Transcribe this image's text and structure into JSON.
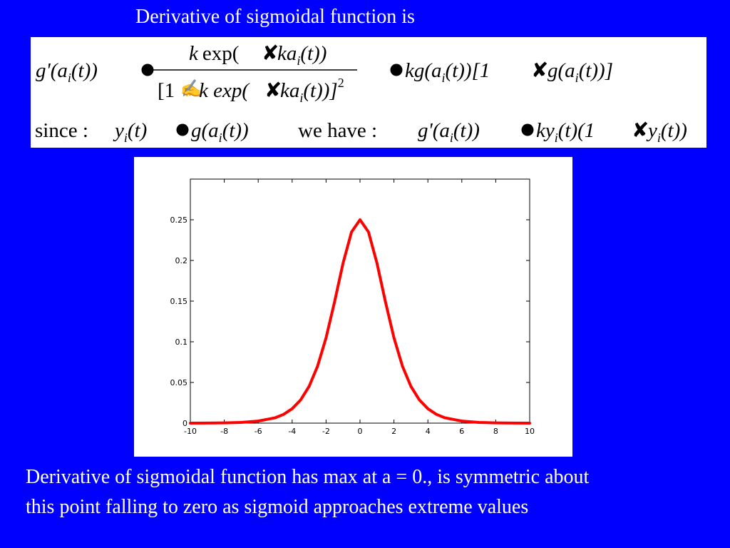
{
  "slide": {
    "title": "Derivative of sigmoidal function is",
    "caption_lines": [
      "Derivative of sigmoidal function has max at a = 0., is symmetric about",
      "this point falling to zero as sigmoid approaches extreme values"
    ],
    "background_color": "#0000ff",
    "text_color": "#ffffff"
  },
  "formula": {
    "line1": {
      "lhs": "g'(a",
      "lhs_sub": "i",
      "lhs_end": "(t))",
      "num_k": "k",
      "num_exp": "exp(",
      "num_arg": "ka",
      "num_sub": "i",
      "num_end": "(t))",
      "den_start": "[1",
      "den_mid": "k exp(",
      "den_arg": "ka",
      "den_sub": "i",
      "den_end": "(t))]",
      "den_pow": "2",
      "rhs_k": "kg(a",
      "rhs_sub": "i",
      "rhs_mid": "(t))[1",
      "rhs_g": "g(a",
      "rhs_sub2": "i",
      "rhs_end": "(t))]"
    },
    "line2": {
      "since": "since :",
      "y": "y",
      "y_sub": "i",
      "y_end": "(t)",
      "g": "g(a",
      "g_sub": "i",
      "g_end": "(t))",
      "we_have": "we have :",
      "gp": "g'(a",
      "gp_sub": "i",
      "gp_end": "(t))",
      "k_y": "ky",
      "k_y_sub": "i",
      "k_y_mid": "(t)(1",
      "y2": "y",
      "y2_sub": "i",
      "y2_end": "(t))"
    }
  },
  "chart_data": {
    "type": "line",
    "title": "",
    "xlabel": "",
    "ylabel": "",
    "xlim": [
      -10,
      10
    ],
    "ylim": [
      0,
      0.3
    ],
    "xticks": [
      -10,
      -8,
      -6,
      -4,
      -2,
      0,
      2,
      4,
      6,
      8,
      10
    ],
    "yticks": [
      0,
      0.05,
      0.1,
      0.15,
      0.2,
      0.25
    ],
    "ytick_labels": [
      "0",
      "0.05",
      "0.1",
      "0.15",
      "0.2",
      "0.25"
    ],
    "grid": false,
    "series": [
      {
        "color": "#ff0000",
        "x": [
          -10,
          -9,
          -8,
          -7,
          -6,
          -5,
          -4.5,
          -4,
          -3.5,
          -3,
          -2.5,
          -2,
          -1.5,
          -1,
          -0.5,
          0,
          0.5,
          1,
          1.5,
          2,
          2.5,
          3,
          3.5,
          4,
          4.5,
          5,
          6,
          7,
          8,
          9,
          10
        ],
        "y": [
          0.0,
          0.0001,
          0.0003,
          0.0009,
          0.0025,
          0.0066,
          0.0108,
          0.0177,
          0.0285,
          0.0452,
          0.0701,
          0.105,
          0.1491,
          0.1966,
          0.235,
          0.25,
          0.235,
          0.1966,
          0.1491,
          0.105,
          0.0701,
          0.0452,
          0.0285,
          0.0177,
          0.0108,
          0.0066,
          0.0025,
          0.0009,
          0.0003,
          0.0001,
          0.0
        ]
      }
    ]
  }
}
